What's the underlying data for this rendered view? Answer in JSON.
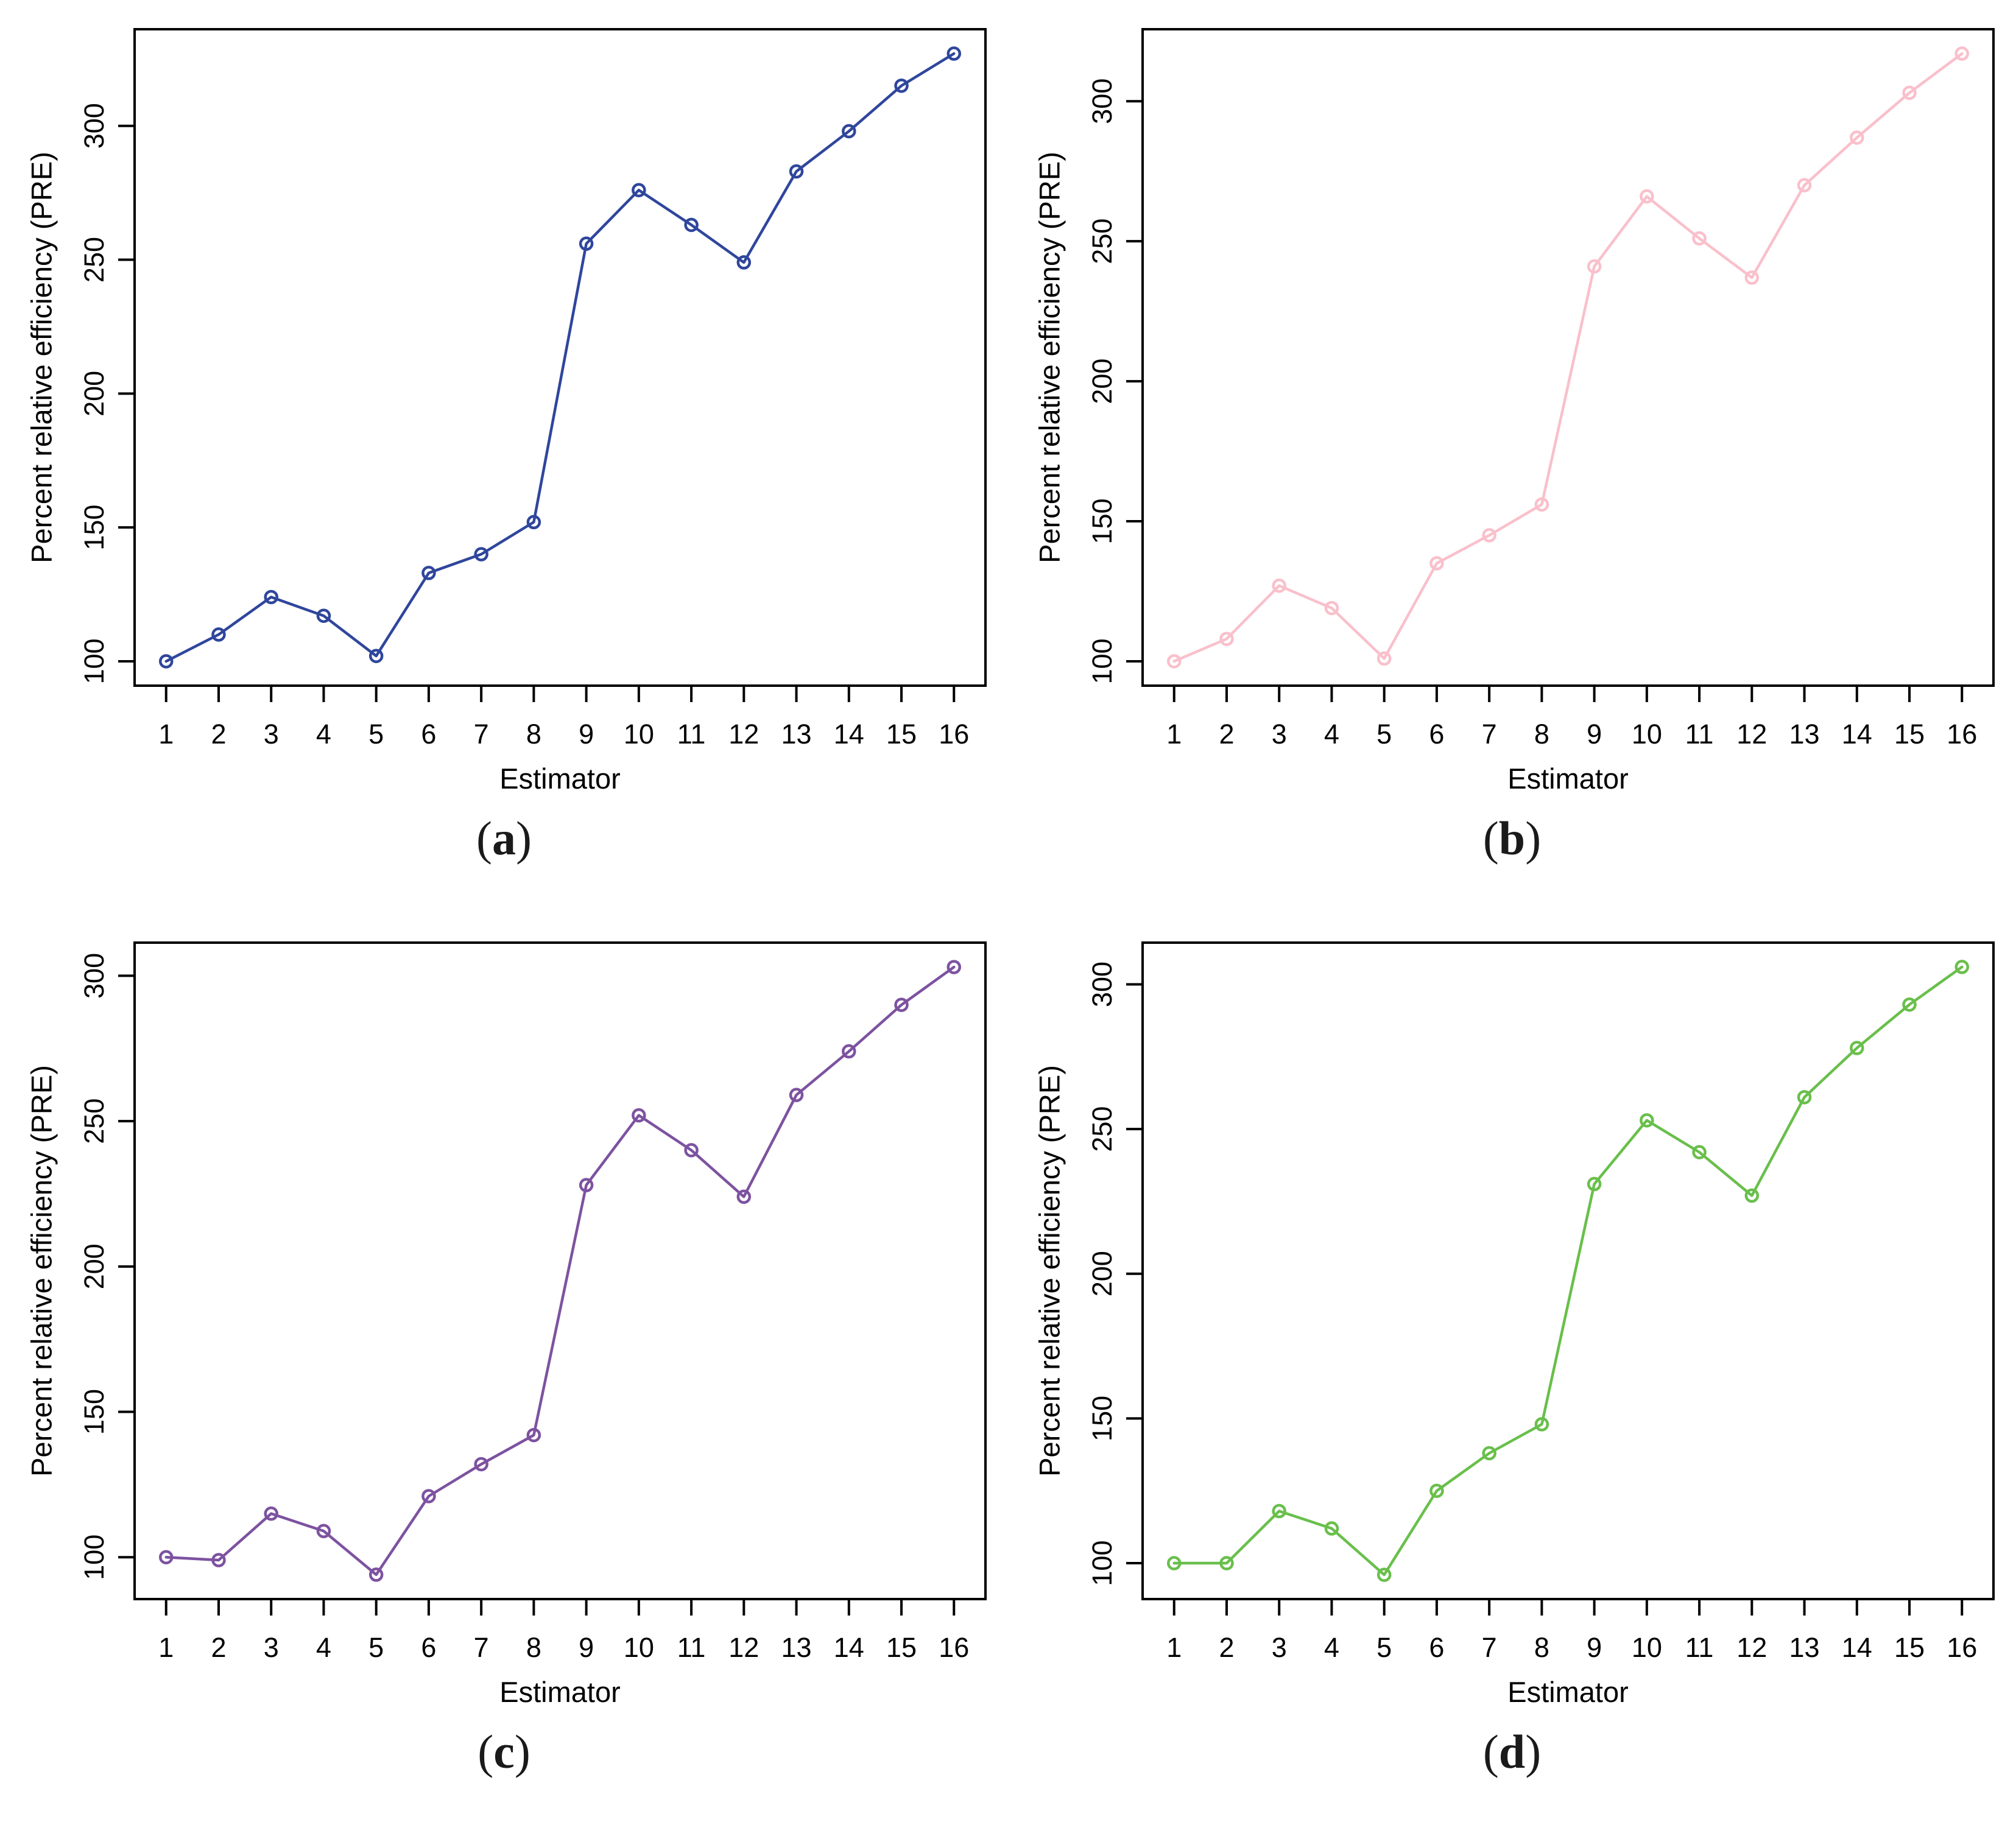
{
  "figure": {
    "background": "#ffffff",
    "text_color": "#000000",
    "panels_order": [
      "a",
      "b",
      "c",
      "d"
    ]
  },
  "chart_data": [
    {
      "id": "a",
      "type": "line",
      "marker": "open-circle",
      "color": "#2F469C",
      "caption_open": "(",
      "caption_letter": "a",
      "caption_close": ")",
      "xlabel": "Estimator",
      "ylabel": "Percent relative efficiency (PRE)",
      "categories": [
        1,
        2,
        3,
        4,
        5,
        6,
        7,
        8,
        9,
        10,
        11,
        12,
        13,
        14,
        15,
        16
      ],
      "values": [
        100,
        110,
        124,
        117,
        102,
        133,
        140,
        152,
        256,
        276,
        263,
        249,
        283,
        298,
        315,
        327
      ],
      "yticks": [
        100,
        150,
        200,
        250,
        300
      ],
      "xlim": [
        0.4,
        16.6
      ],
      "ylim": [
        90.9,
        336.1
      ],
      "grid": false,
      "legend": "none"
    },
    {
      "id": "b",
      "type": "line",
      "marker": "open-circle",
      "color": "#F9C0CB",
      "caption_open": "(",
      "caption_letter": "b",
      "caption_close": ")",
      "xlabel": "Estimator",
      "ylabel": "Percent relative efficiency (PRE)",
      "categories": [
        1,
        2,
        3,
        4,
        5,
        6,
        7,
        8,
        9,
        10,
        11,
        12,
        13,
        14,
        15,
        16
      ],
      "values": [
        100,
        108,
        127,
        119,
        101,
        135,
        145,
        156,
        241,
        266,
        251,
        237,
        270,
        287,
        303,
        317
      ],
      "yticks": [
        100,
        150,
        200,
        250,
        300
      ],
      "xlim": [
        0.4,
        16.6
      ],
      "ylim": [
        91.3,
        325.7
      ],
      "grid": false,
      "legend": "none"
    },
    {
      "id": "c",
      "type": "line",
      "marker": "open-circle",
      "color": "#7D52A0",
      "caption_open": "(",
      "caption_letter": "c",
      "caption_close": ")",
      "xlabel": "Estimator",
      "ylabel": "Percent relative efficiency (PRE)",
      "categories": [
        1,
        2,
        3,
        4,
        5,
        6,
        7,
        8,
        9,
        10,
        11,
        12,
        13,
        14,
        15,
        16
      ],
      "values": [
        100,
        99,
        115,
        109,
        94,
        121,
        132,
        142,
        228,
        252,
        240,
        224,
        259,
        274,
        290,
        303
      ],
      "yticks": [
        100,
        150,
        200,
        250,
        300
      ],
      "xlim": [
        0.4,
        16.6
      ],
      "ylim": [
        85.6,
        311.4
      ],
      "grid": false,
      "legend": "none"
    },
    {
      "id": "d",
      "type": "line",
      "marker": "open-circle",
      "color": "#69BF4B",
      "caption_open": "(",
      "caption_letter": "d",
      "caption_close": ")",
      "xlabel": "Estimator",
      "ylabel": "Percent relative efficiency (PRE)",
      "categories": [
        1,
        2,
        3,
        4,
        5,
        6,
        7,
        8,
        9,
        10,
        11,
        12,
        13,
        14,
        15,
        16
      ],
      "values": [
        100,
        100,
        118,
        112,
        96,
        125,
        138,
        148,
        231,
        253,
        242,
        227,
        261,
        278,
        293,
        306
      ],
      "yticks": [
        100,
        150,
        200,
        250,
        300
      ],
      "xlim": [
        0.4,
        16.6
      ],
      "ylim": [
        87.6,
        314.4
      ],
      "grid": false,
      "legend": "none"
    }
  ]
}
